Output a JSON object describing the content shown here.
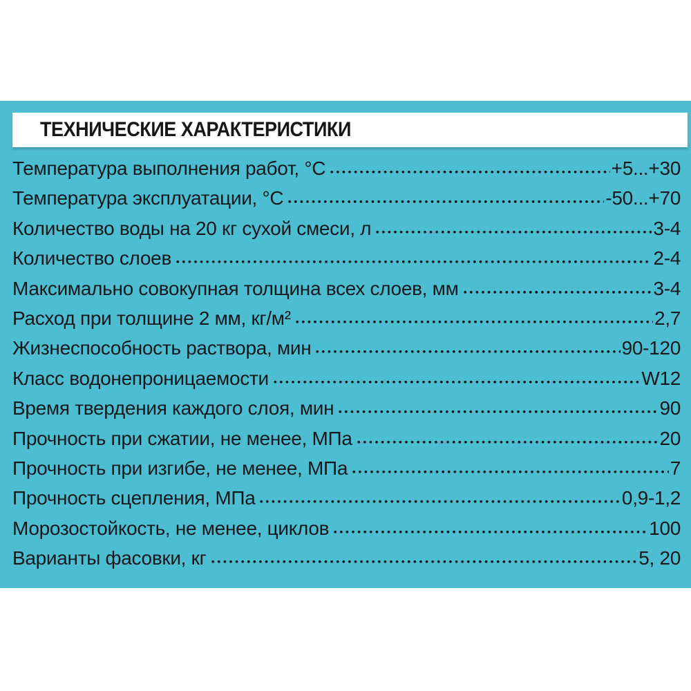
{
  "theme": {
    "page_background": "#ffffff",
    "panel_background": "#4dbdd1",
    "title_band_background": "#ffffff",
    "text_color": "#13191d",
    "title_color": "#161616"
  },
  "header": {
    "title": "ТЕХНИЧЕСКИЕ ХАРАКТЕРИСТИКИ"
  },
  "specs": {
    "rows": [
      {
        "label": "Температура выполнения работ, °С",
        "value": "+5...+30"
      },
      {
        "label": "Температура эксплуатации, °С",
        "value": "-50...+70"
      },
      {
        "label": "Количество воды на 20 кг сухой смеси, л",
        "value": "3-4"
      },
      {
        "label": "Количество слоев",
        "value": "2-4"
      },
      {
        "label": "Максимально совокупная толщина всех слоев, мм",
        "value": "3-4"
      },
      {
        "label": "Расход при толщине 2 мм, кг/м²",
        "value": "2,7"
      },
      {
        "label": "Жизнеспособность раствора, мин",
        "value": "90-120"
      },
      {
        "label": "Класс водонепроницаемости",
        "value": "W12"
      },
      {
        "label": "Время твердения каждого слоя, мин",
        "value": "90"
      },
      {
        "label": "Прочность при сжатии, не менее, МПа",
        "value": "20"
      },
      {
        "label": "Прочность при изгибе, не менее, МПа",
        "value": "7"
      },
      {
        "label": "Прочность сцепления, МПа",
        "value": "0,9-1,2"
      },
      {
        "label": "Морозостойкость, не менее, циклов",
        "value": "100"
      },
      {
        "label": "Варианты фасовки, кг",
        "value": "5, 20"
      }
    ]
  }
}
